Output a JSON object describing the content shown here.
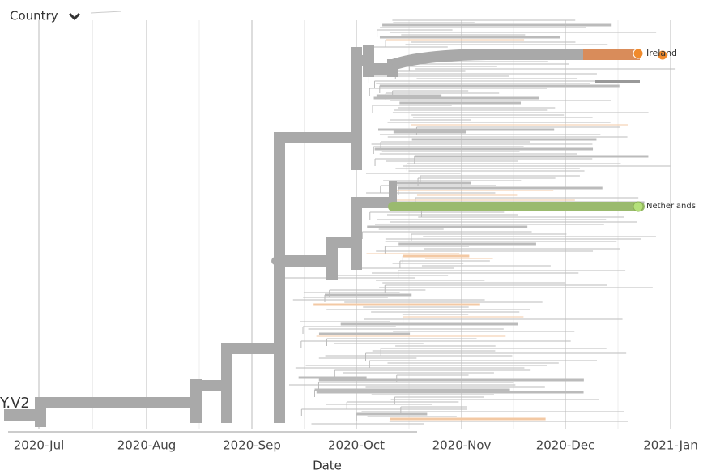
{
  "header": {
    "control": "Country"
  },
  "axis": {
    "ticks": [
      "2020-Jul",
      "2020-Aug",
      "2020-Sep",
      "2020-Oct",
      "2020-Nov",
      "2020-Dec",
      "2021-Jan"
    ],
    "title": "Date"
  },
  "tips": [
    {
      "label": "Ireland"
    },
    {
      "label": "Netherlands"
    }
  ],
  "root_label": "Y.V2"
}
